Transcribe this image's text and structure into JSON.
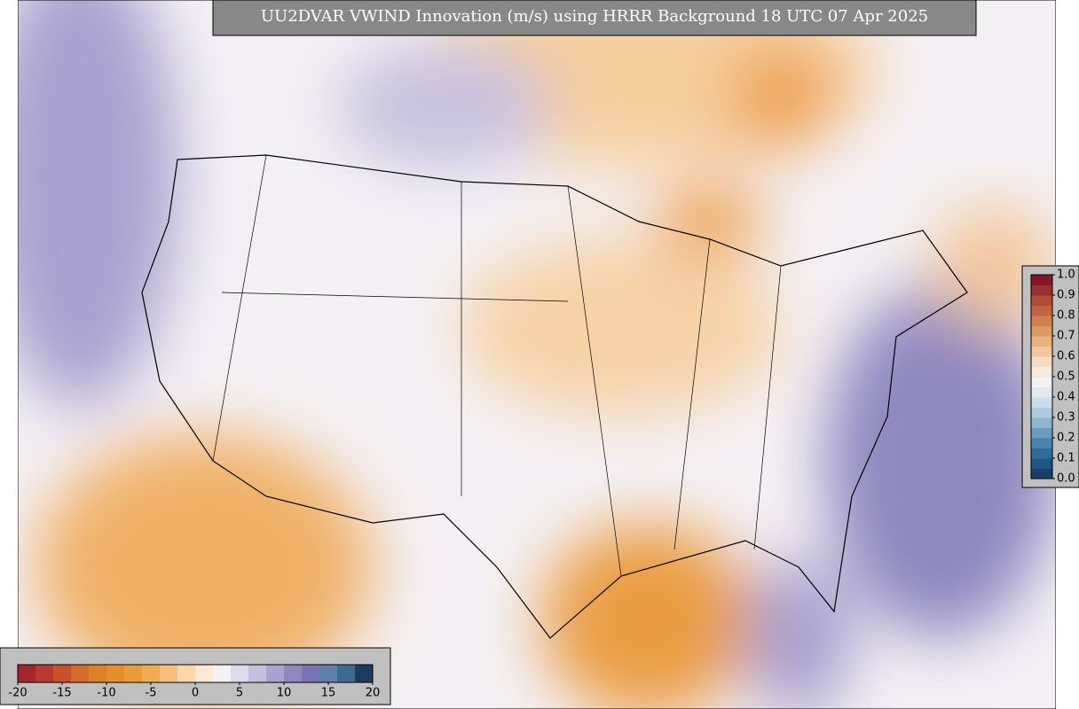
{
  "header": {
    "title": "UU2DVAR VWIND Innovation (m/s) using HRRR Background 18 UTC 07 Apr 2025"
  },
  "colorbars": [
    {
      "orientation": "horizontal",
      "lim": [
        -20,
        20
      ],
      "ticks": [
        -20,
        -15,
        -10,
        -5,
        0,
        5,
        10,
        15,
        20
      ],
      "colors": [
        "#a3272b",
        "#b8392f",
        "#c8502f",
        "#d46a2c",
        "#de7f2a",
        "#e58f2c",
        "#ea9c3a",
        "#efac55",
        "#f4c07c",
        "#f8d6a8",
        "#fbe8d3",
        "#f4f2f6",
        "#dcdbec",
        "#c3c0de",
        "#a9a4cf",
        "#8f88bf",
        "#7a73b3",
        "#5f7ea8",
        "#3d6a90",
        "#1f3a5f"
      ]
    },
    {
      "orientation": "vertical",
      "lim": [
        0,
        1
      ],
      "ticks": [
        {
          "value": 0,
          "label": "0.0"
        },
        0.1,
        0.2,
        0.3,
        0.4,
        0.5,
        0.6,
        0.7,
        0.8,
        0.9,
        {
          "value": 1,
          "label": "1.0"
        }
      ],
      "colors": [
        "#1b3f6b",
        "#1f5585",
        "#2f6b9a",
        "#4a84ae",
        "#6a9dc0",
        "#8fb6cf",
        "#b0cade",
        "#cbdbe8",
        "#e2e8f0",
        "#f2f1f3",
        "#f8ebdd",
        "#f6dcc0",
        "#f1c89e",
        "#e9b27c",
        "#dd9a63",
        "#d07f4f",
        "#c3633f",
        "#b24a34",
        "#9c2f2b",
        "#84162a"
      ]
    }
  ]
}
